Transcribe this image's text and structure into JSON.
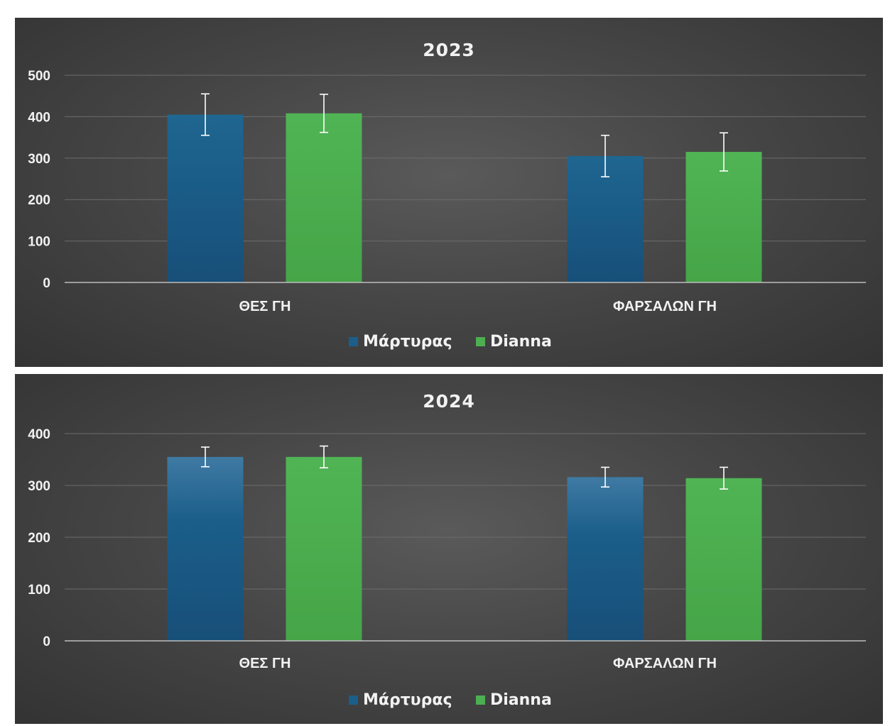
{
  "chart_data": [
    {
      "type": "bar",
      "title": "2023",
      "xlabel": "",
      "ylabel": "",
      "categories": [
        "ΘΕΣ ΓΗ",
        "ΦΑΡΣΑΛΩΝ ΓΗ"
      ],
      "series": [
        {
          "name": "Μάρτυρας",
          "color": "#1b5e8a",
          "values": [
            405,
            305
          ],
          "error": [
            50,
            50
          ]
        },
        {
          "name": "Dianna",
          "color": "#4caf50",
          "values": [
            408,
            315
          ],
          "error": [
            46,
            46
          ]
        }
      ],
      "ylim": [
        0,
        500
      ],
      "yticks": [
        0,
        100,
        200,
        300,
        400,
        500
      ],
      "grid": true,
      "legend": "bottom"
    },
    {
      "type": "bar",
      "title": "2024",
      "xlabel": "",
      "ylabel": "",
      "categories": [
        "ΘΕΣ ΓΗ",
        "ΦΑΡΣΑΛΩΝ ΓΗ"
      ],
      "series": [
        {
          "name": "Μάρτυρας",
          "color": "#1b5e8a",
          "values": [
            355,
            316
          ],
          "error": [
            19,
            19
          ]
        },
        {
          "name": "Dianna",
          "color": "#4caf50",
          "values": [
            355,
            314
          ],
          "error": [
            21,
            21
          ]
        }
      ],
      "ylim": [
        0,
        400
      ],
      "yticks": [
        0,
        100,
        200,
        300,
        400
      ],
      "grid": true,
      "legend": "bottom"
    }
  ]
}
